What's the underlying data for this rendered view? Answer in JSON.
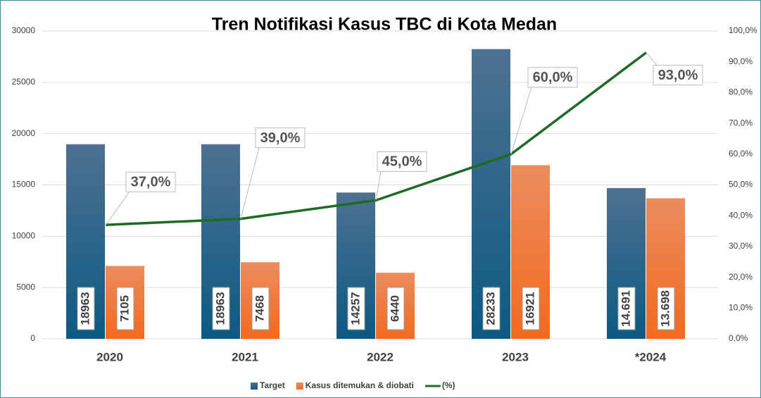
{
  "chart_data": {
    "type": "bar",
    "title": "Tren Notifikasi Kasus TBC di Kota Medan",
    "categories": [
      "2020",
      "2021",
      "2022",
      "2023",
      "*2024"
    ],
    "series": [
      {
        "name": "Target",
        "color": "#1f5f85",
        "values": [
          18963,
          18963,
          14257,
          28233,
          14691
        ],
        "value_labels": [
          "18963",
          "18963",
          "14257",
          "28233",
          "14.691"
        ]
      },
      {
        "name": "Kasus ditemukan & diobati",
        "color": "#ee7a3a",
        "values": [
          7105,
          7468,
          6440,
          16921,
          13698
        ],
        "value_labels": [
          "7105",
          "7468",
          "6440",
          "16921",
          "13.698"
        ]
      },
      {
        "name": "(%)",
        "type": "line",
        "axis": "y2",
        "color": "#1e6b24",
        "values": [
          37,
          39,
          45,
          60,
          93
        ],
        "value_labels": [
          "37,0%",
          "39,0%",
          "45,0%",
          "60,0%",
          "93,0%"
        ]
      }
    ],
    "ylim": [
      0,
      30000
    ],
    "yticks": [
      0,
      5000,
      10000,
      15000,
      20000,
      25000,
      30000
    ],
    "y2lim": [
      0,
      100
    ],
    "y2ticks": [
      {
        "value": 0,
        "label": "0,0%"
      },
      {
        "value": 10,
        "label": "10,0%"
      },
      {
        "value": 20,
        "label": "20,0%"
      },
      {
        "value": 30,
        "label": "30,0%"
      },
      {
        "value": 40,
        "label": "40,0%"
      },
      {
        "value": 50,
        "label": "50,0%"
      },
      {
        "value": 60,
        "label": "60,0%"
      },
      {
        "value": 70,
        "label": "70,0%"
      },
      {
        "value": 80,
        "label": "80,0%"
      },
      {
        "value": 90,
        "label": "90,0%"
      },
      {
        "value": 100,
        "label": "100,0%"
      }
    ],
    "grid": true,
    "legend": "bottom"
  }
}
